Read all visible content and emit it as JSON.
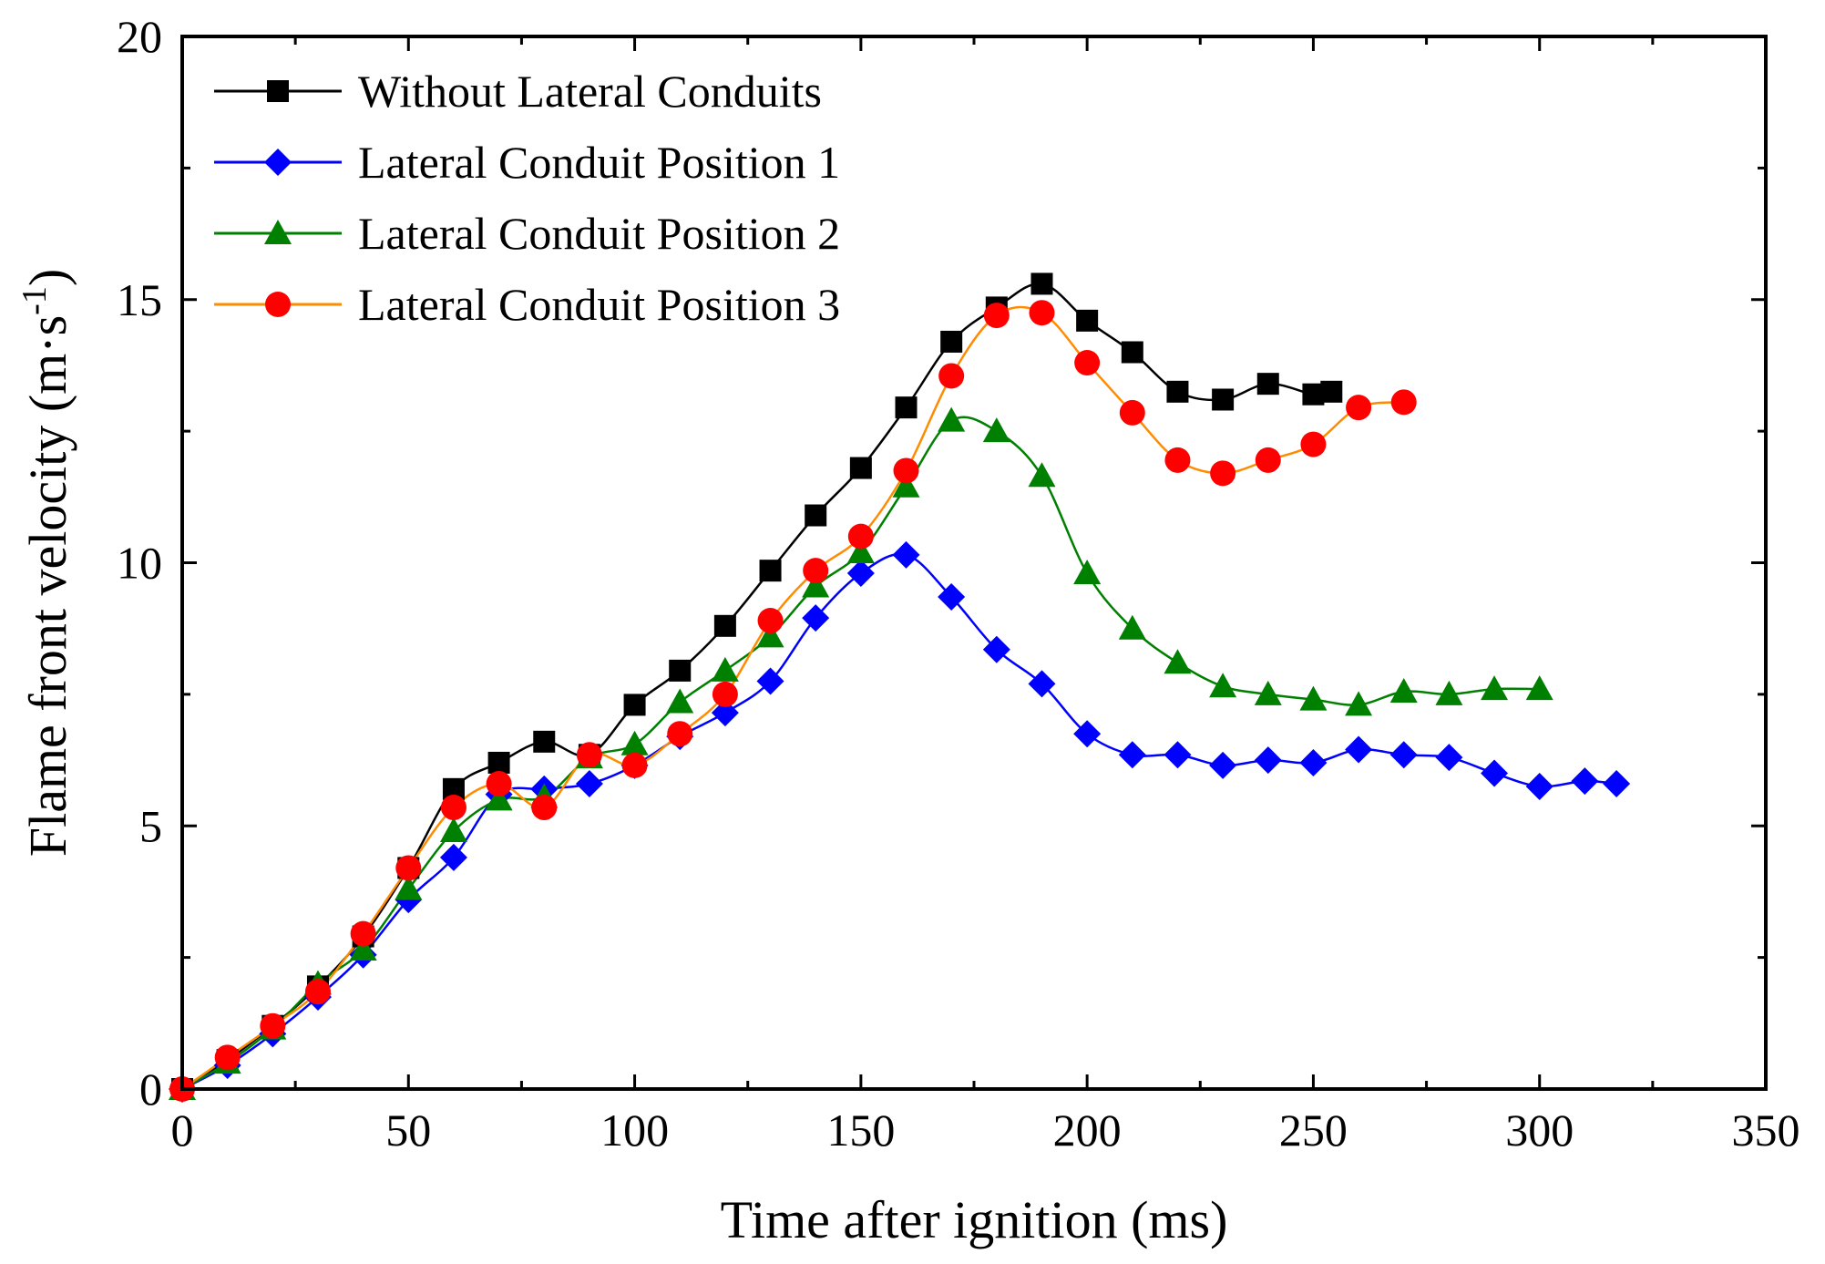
{
  "chart_data": {
    "type": "line",
    "title": "",
    "xlabel": "Time after ignition (ms)",
    "ylabel": "Flame front velocity (m·s",
    "ylabel_exp": "-1",
    "ylabel_close": ")",
    "xlim": [
      0,
      350
    ],
    "ylim": [
      0,
      20
    ],
    "xticks": [
      0,
      50,
      100,
      150,
      200,
      250,
      300,
      350
    ],
    "yticks": [
      0,
      5,
      10,
      15,
      20
    ],
    "xtick_labels": [
      "0",
      "50",
      "100",
      "150",
      "200",
      "250",
      "300",
      "350"
    ],
    "ytick_labels": [
      "0",
      "5",
      "10",
      "15",
      "20"
    ],
    "grid": false,
    "legend_position": "top-left",
    "series": [
      {
        "name": "Without Lateral Conduits",
        "color": "#000000",
        "marker": "square",
        "x": [
          0,
          10,
          20,
          30,
          40,
          50,
          60,
          70,
          80,
          90,
          100,
          110,
          120,
          130,
          140,
          150,
          160,
          170,
          180,
          190,
          200,
          210,
          220,
          230,
          240,
          250,
          254
        ],
        "y": [
          0,
          0.55,
          1.2,
          1.95,
          2.9,
          4.2,
          5.7,
          6.2,
          6.6,
          6.35,
          7.3,
          7.95,
          8.8,
          9.85,
          10.9,
          11.8,
          12.95,
          14.2,
          14.85,
          15.3,
          14.6,
          14.0,
          13.25,
          13.1,
          13.4,
          13.2,
          13.25
        ]
      },
      {
        "name": "Lateral Conduit Position 1",
        "color": "#0000ff",
        "marker": "diamond",
        "x": [
          0,
          10,
          20,
          30,
          40,
          50,
          60,
          70,
          80,
          90,
          100,
          110,
          120,
          130,
          140,
          150,
          160,
          170,
          180,
          190,
          200,
          210,
          220,
          230,
          240,
          250,
          260,
          270,
          280,
          290,
          300,
          310,
          317
        ],
        "y": [
          0,
          0.45,
          1.05,
          1.75,
          2.55,
          3.6,
          4.4,
          5.6,
          5.7,
          5.8,
          6.15,
          6.7,
          7.15,
          7.75,
          8.95,
          9.8,
          10.15,
          9.35,
          8.35,
          7.7,
          6.75,
          6.35,
          6.35,
          6.15,
          6.25,
          6.2,
          6.45,
          6.35,
          6.3,
          6.0,
          5.75,
          5.85,
          5.8
        ]
      },
      {
        "name": "Lateral Conduit Position 2",
        "color": "#008000",
        "marker": "triangle",
        "x": [
          0,
          10,
          20,
          30,
          40,
          50,
          60,
          70,
          80,
          90,
          100,
          110,
          120,
          130,
          140,
          150,
          160,
          170,
          180,
          190,
          200,
          210,
          220,
          230,
          240,
          250,
          260,
          270,
          280,
          290,
          300
        ],
        "y": [
          0,
          0.5,
          1.15,
          2.0,
          2.65,
          3.8,
          4.9,
          5.5,
          5.55,
          6.3,
          6.55,
          7.35,
          7.95,
          8.6,
          9.55,
          10.2,
          11.45,
          12.7,
          12.5,
          11.65,
          9.8,
          8.75,
          8.1,
          7.65,
          7.5,
          7.4,
          7.3,
          7.55,
          7.5,
          7.6,
          7.6
        ]
      },
      {
        "name": "Lateral Conduit Position 3",
        "color": "#ff8c00",
        "marker": "circle",
        "marker_color": "#ff0000",
        "x": [
          0,
          10,
          20,
          30,
          40,
          50,
          60,
          70,
          80,
          90,
          100,
          110,
          120,
          130,
          140,
          150,
          160,
          170,
          180,
          190,
          200,
          210,
          220,
          230,
          240,
          250,
          260,
          270
        ],
        "y": [
          0,
          0.6,
          1.2,
          1.85,
          2.95,
          4.2,
          5.35,
          5.8,
          5.35,
          6.35,
          6.15,
          6.75,
          7.5,
          8.9,
          9.85,
          10.5,
          11.75,
          13.55,
          14.7,
          14.75,
          13.8,
          12.85,
          11.95,
          11.7,
          11.95,
          12.25,
          12.95,
          13.05
        ]
      }
    ]
  }
}
